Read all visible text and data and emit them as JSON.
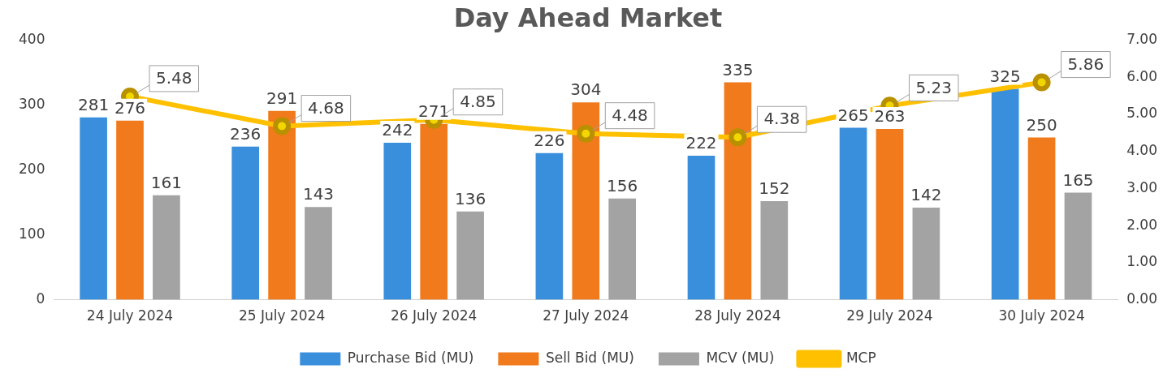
{
  "chart_data": {
    "type": "bar",
    "title": "Day Ahead Market",
    "categories": [
      "24 July 2024",
      "25 July 2024",
      "26 July 2024",
      "27 July 2024",
      "28 July 2024",
      "29 July 2024",
      "30 July 2024"
    ],
    "series": [
      {
        "name": "Purchase Bid (MU)",
        "color": "#3a8fdc",
        "values": [
          281,
          236,
          242,
          226,
          222,
          265,
          325
        ]
      },
      {
        "name": "Sell Bid (MU)",
        "color": "#f07a1c",
        "values": [
          276,
          291,
          271,
          304,
          335,
          263,
          250
        ]
      },
      {
        "name": "MCV (MU)",
        "color": "#a3a3a3",
        "values": [
          161,
          143,
          136,
          156,
          152,
          142,
          165
        ]
      },
      {
        "name": "MCP",
        "type": "line",
        "axis": "y2",
        "color": "#ffc000",
        "marker": "circle",
        "values": [
          5.48,
          4.68,
          4.85,
          4.48,
          4.38,
          5.23,
          5.86
        ]
      }
    ],
    "ylim": [
      0,
      400
    ],
    "yticks": [
      0,
      100,
      200,
      300,
      400
    ],
    "y2lim": [
      0,
      7
    ],
    "y2ticks": [
      {
        "value": 0,
        "label": "0.00"
      },
      {
        "value": 1,
        "label": "1.00"
      },
      {
        "value": 2,
        "label": "2.00"
      },
      {
        "value": 3,
        "label": "3.00"
      },
      {
        "value": 4,
        "label": "4.00"
      },
      {
        "value": 5,
        "label": "5.00"
      },
      {
        "value": 6,
        "label": "6.00"
      },
      {
        "value": 7,
        "label": "7.00"
      }
    ],
    "grid": false,
    "legend": "bottom",
    "data_labels": true
  }
}
